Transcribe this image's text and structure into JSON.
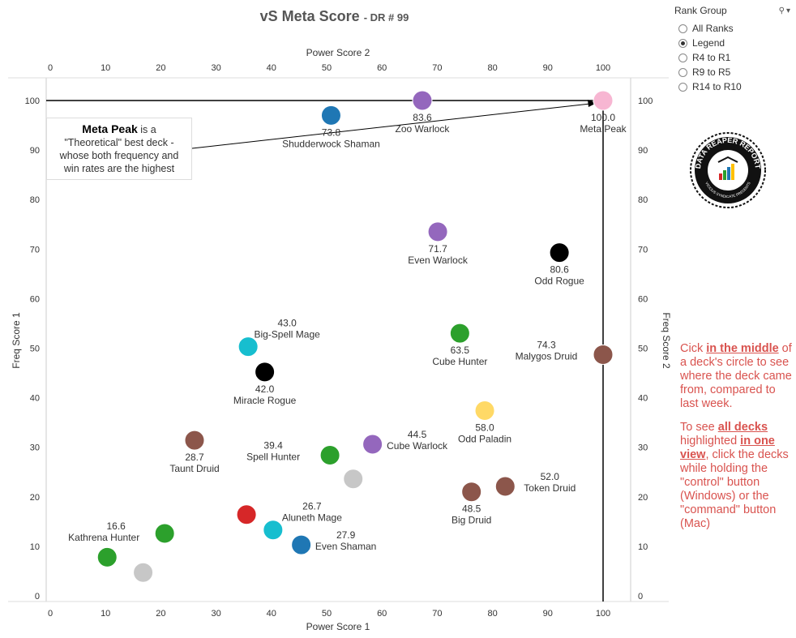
{
  "title": {
    "main": "vS Meta Score",
    "sub": "- DR # 99"
  },
  "rank_group": {
    "label": "Rank Group",
    "options": [
      {
        "label": "All Ranks",
        "selected": false
      },
      {
        "label": "Legend",
        "selected": true
      },
      {
        "label": "R4 to R1",
        "selected": false
      },
      {
        "label": "R9 to R5",
        "selected": false
      },
      {
        "label": "R14 to R10",
        "selected": false
      }
    ]
  },
  "annotation": {
    "bold": "Meta Peak",
    "rest1": " is a",
    "rest2": "\"Theoretical\" best deck -",
    "rest3": "whose both frequency and",
    "rest4": "win rates are the highest"
  },
  "logo": {
    "text_top": "DATA REAPER REPORT",
    "text_bottom": "VICIOUS SYNDICATE PRESENTS"
  },
  "help": {
    "p1_a": "Cick ",
    "p1_link": "in the middle",
    "p1_b": " of a deck's circle to see where the deck came from, compared to last week.",
    "p2_a": "To see ",
    "p2_link1": "all decks",
    "p2_b": " highlighted ",
    "p2_link2": "in one view",
    "p2_c": ", click the decks while holding the \"control\" button (Windows) or the \"command\" button (Mac)"
  },
  "chart_data": {
    "type": "scatter",
    "x_bottom_label": "Power Score 1",
    "x_top_label": "Power Score 2",
    "y_left_label": "Freq Score 1",
    "y_right_label": "Freq Score 2",
    "xlim": [
      -5,
      105
    ],
    "ylim": [
      -1,
      106
    ],
    "x_ticks": [
      0,
      10,
      20,
      30,
      40,
      50,
      60,
      70,
      80,
      90,
      100
    ],
    "y_ticks": [
      0,
      10,
      20,
      30,
      40,
      50,
      60,
      70,
      80,
      90,
      100
    ],
    "reference_lines": {
      "x": 100,
      "y": 100
    },
    "grid": false,
    "points": [
      {
        "x": 100,
        "y": 100,
        "color": "#f7b6d2",
        "label": "Meta Peak",
        "score": "100.0",
        "label_pos": "below"
      },
      {
        "x": 67.3,
        "y": 100,
        "color": "#9467bd",
        "label": "Zoo Warlock",
        "score": "83.6",
        "label_pos": "below"
      },
      {
        "x": 50.8,
        "y": 97,
        "color": "#1f77b4",
        "label": "Shudderwock Shaman",
        "score": "73.8",
        "label_pos": "below"
      },
      {
        "x": 70.1,
        "y": 73.5,
        "color": "#9467bd",
        "label": "Even Warlock",
        "score": "71.7",
        "label_pos": "below"
      },
      {
        "x": 92.1,
        "y": 69.3,
        "color": "#000000",
        "label": "Odd Rogue",
        "score": "80.6",
        "label_pos": "below"
      },
      {
        "x": 35.8,
        "y": 50.3,
        "color": "#17becf",
        "label": "Big-Spell Mage",
        "score": "43.0",
        "label_pos": "above-right"
      },
      {
        "x": 38.8,
        "y": 45.2,
        "color": "#000000",
        "label": "Miracle Rogue",
        "score": "42.0",
        "label_pos": "below"
      },
      {
        "x": 74.1,
        "y": 53,
        "color": "#2ca02c",
        "label": "Cube Hunter",
        "score": "63.5",
        "label_pos": "below"
      },
      {
        "x": 100,
        "y": 48.7,
        "color": "#8c564b",
        "label": "Malygos Druid",
        "score": "74.3",
        "label_pos": "left"
      },
      {
        "x": 78.6,
        "y": 37.4,
        "color": "#ffd966",
        "label": "Odd Paladin",
        "score": "58.0",
        "label_pos": "below"
      },
      {
        "x": 26.1,
        "y": 31.4,
        "color": "#8c564b",
        "label": "Taunt Druid",
        "score": "28.7",
        "label_pos": "below"
      },
      {
        "x": 50.6,
        "y": 28.4,
        "color": "#2ca02c",
        "label": "Spell Hunter",
        "score": "39.4",
        "label_pos": "left"
      },
      {
        "x": 58.3,
        "y": 30.6,
        "color": "#9467bd",
        "label": "Cube Warlock",
        "score": "44.5",
        "label_pos": "right"
      },
      {
        "x": 54.8,
        "y": 23.6,
        "color": "#c7c7c7",
        "label": "",
        "score": "",
        "label_pos": "none"
      },
      {
        "x": 82.3,
        "y": 22.1,
        "color": "#8c564b",
        "label": "Token Druid",
        "score": "52.0",
        "label_pos": "right"
      },
      {
        "x": 76.2,
        "y": 21,
        "color": "#8c564b",
        "label": "Big Druid",
        "score": "48.5",
        "label_pos": "below"
      },
      {
        "x": 35.5,
        "y": 16.4,
        "color": "#d62728",
        "label": "",
        "score": "",
        "label_pos": "none"
      },
      {
        "x": 40.3,
        "y": 13.3,
        "color": "#17becf",
        "label": "Aluneth Mage",
        "score": "26.7",
        "label_pos": "above-right"
      },
      {
        "x": 45.4,
        "y": 10.3,
        "color": "#1f77b4",
        "label": "Even Shaman",
        "score": "27.9",
        "label_pos": "right"
      },
      {
        "x": 20.7,
        "y": 12.6,
        "color": "#2ca02c",
        "label": "Kathrena Hunter",
        "score": "16.6",
        "label_pos": "left-above"
      },
      {
        "x": 10.3,
        "y": 7.8,
        "color": "#2ca02c",
        "label": "",
        "score": "",
        "label_pos": "none"
      },
      {
        "x": 16.8,
        "y": 4.7,
        "color": "#c7c7c7",
        "label": "",
        "score": "",
        "label_pos": "none"
      }
    ]
  }
}
